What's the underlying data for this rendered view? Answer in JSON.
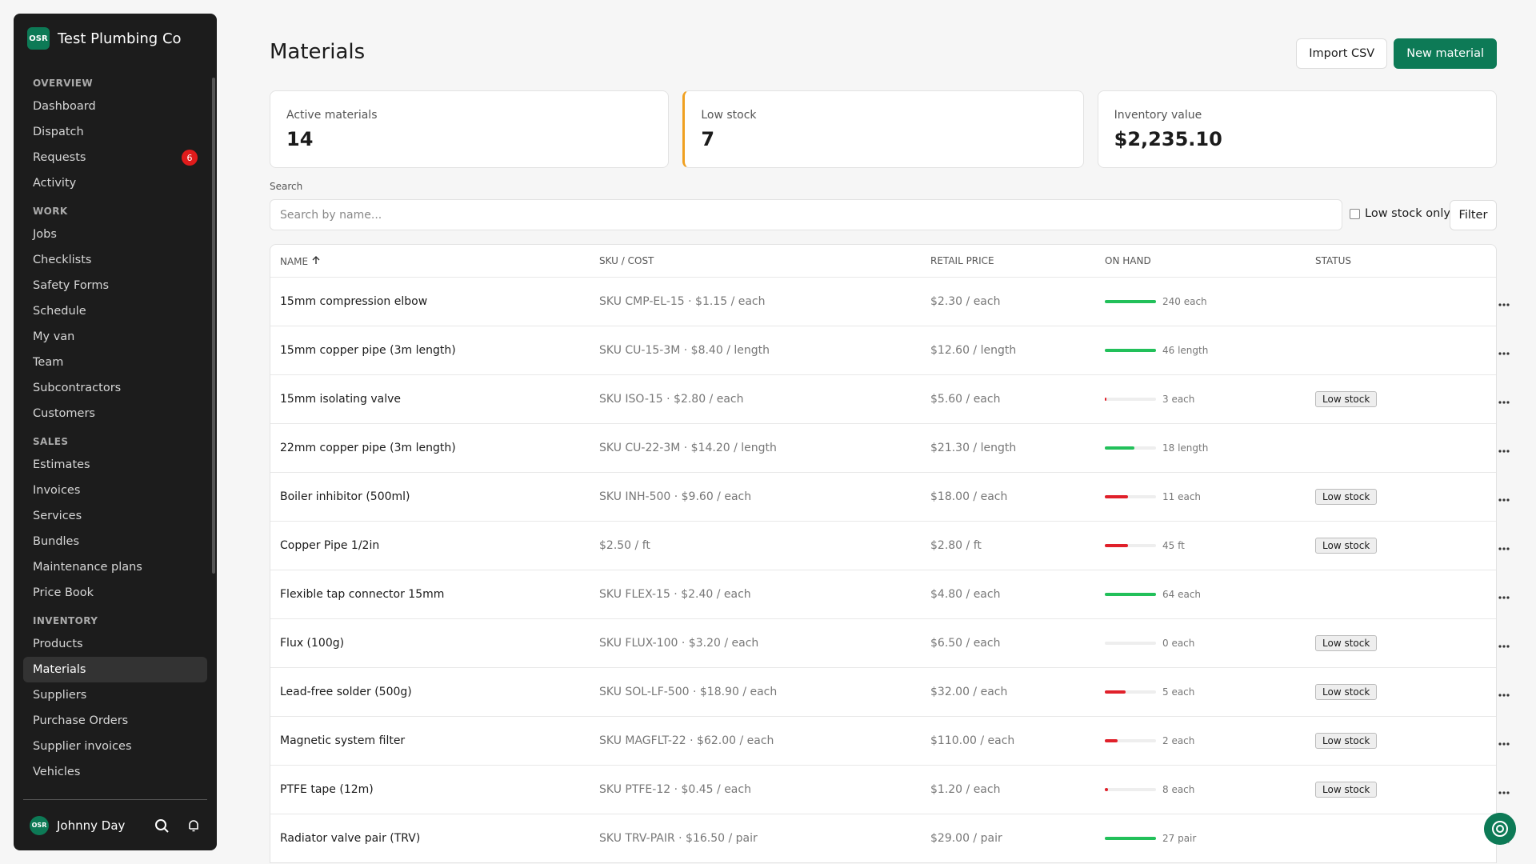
{
  "sidebar": {
    "brand_logo": "OSR",
    "brand": "Test Plumbing Co",
    "sections": [
      {
        "title": "OVERVIEW",
        "items": [
          {
            "label": "Dashboard"
          },
          {
            "label": "Dispatch"
          },
          {
            "label": "Requests",
            "badge": "6"
          },
          {
            "label": "Activity"
          }
        ]
      },
      {
        "title": "WORK",
        "items": [
          {
            "label": "Jobs"
          },
          {
            "label": "Checklists"
          },
          {
            "label": "Safety Forms"
          },
          {
            "label": "Schedule"
          },
          {
            "label": "My van"
          },
          {
            "label": "Team"
          },
          {
            "label": "Subcontractors"
          },
          {
            "label": "Customers"
          }
        ]
      },
      {
        "title": "SALES",
        "items": [
          {
            "label": "Estimates"
          },
          {
            "label": "Invoices"
          },
          {
            "label": "Services"
          },
          {
            "label": "Bundles"
          },
          {
            "label": "Maintenance plans"
          },
          {
            "label": "Price Book"
          }
        ]
      },
      {
        "title": "INVENTORY",
        "items": [
          {
            "label": "Products"
          },
          {
            "label": "Materials",
            "active": true
          },
          {
            "label": "Suppliers"
          },
          {
            "label": "Purchase Orders"
          },
          {
            "label": "Supplier invoices"
          },
          {
            "label": "Vehicles"
          }
        ]
      }
    ],
    "user": {
      "avatar": "OSR",
      "name": "Johnny Day"
    }
  },
  "header": {
    "title": "Materials",
    "buttons": [
      "Import CSV",
      "New material"
    ]
  },
  "stats": [
    {
      "label": "Active materials",
      "value": "14"
    },
    {
      "label": "Low stock",
      "value": "7",
      "accent": "#f0a020"
    },
    {
      "label": "Inventory value",
      "value": "$2,235.10"
    }
  ],
  "search": {
    "label": "Search",
    "placeholder": "Search by name...",
    "checkbox": "Low stock only",
    "filter": "Filter"
  },
  "table": {
    "columns": [
      "NAME",
      "SKU / COST",
      "RETAIL PRICE",
      "ON HAND",
      "STATUS"
    ],
    "rows": [
      {
        "name": "15mm compression elbow",
        "sku_cost": "SKU CMP-EL-15 · $1.15 / each",
        "retail": "$2.30 / each",
        "on_hand": "240 each",
        "level": 100
      },
      {
        "name": "15mm copper pipe (3m length)",
        "sku_cost": "SKU CU-15-3M · $8.40 / length",
        "retail": "$12.60 / length",
        "on_hand": "46 length",
        "level": 100
      },
      {
        "name": "15mm isolating valve",
        "sku_cost": "SKU ISO-15 · $2.80 / each",
        "retail": "$5.60 / each",
        "on_hand": "3 each",
        "level": 3,
        "status": "Low stock"
      },
      {
        "name": "22mm copper pipe (3m length)",
        "sku_cost": "SKU CU-22-3M · $14.20 / length",
        "retail": "$21.30 / length",
        "on_hand": "18 length",
        "level": 58
      },
      {
        "name": "Boiler inhibitor (500ml)",
        "sku_cost": "SKU INH-500 · $9.60 / each",
        "retail": "$18.00 / each",
        "on_hand": "11 each",
        "level": 45,
        "status": "Low stock"
      },
      {
        "name": "Copper Pipe 1/2in",
        "sku_cost": "$2.50 / ft",
        "retail": "$2.80 / ft",
        "on_hand": "45 ft",
        "level": 45,
        "status": "Low stock"
      },
      {
        "name": "Flexible tap connector 15mm",
        "sku_cost": "SKU FLEX-15 · $2.40 / each",
        "retail": "$4.80 / each",
        "on_hand": "64 each",
        "level": 100
      },
      {
        "name": "Flux (100g)",
        "sku_cost": "SKU FLUX-100 · $3.20 / each",
        "retail": "$6.50 / each",
        "on_hand": "0 each",
        "level": 0,
        "status": "Low stock"
      },
      {
        "name": "Lead-free solder (500g)",
        "sku_cost": "SKU SOL-LF-500 · $18.90 / each",
        "retail": "$32.00 / each",
        "on_hand": "5 each",
        "level": 40,
        "status": "Low stock"
      },
      {
        "name": "Magnetic system filter",
        "sku_cost": "SKU MAGFLT-22 · $62.00 / each",
        "retail": "$110.00 / each",
        "on_hand": "2 each",
        "level": 25,
        "status": "Low stock"
      },
      {
        "name": "PTFE tape (12m)",
        "sku_cost": "SKU PTFE-12 · $0.45 / each",
        "retail": "$1.20 / each",
        "on_hand": "8 each",
        "level": 6,
        "status": "Low stock"
      },
      {
        "name": "Radiator valve pair (TRV)",
        "sku_cost": "SKU TRV-PAIR · $16.50 / pair",
        "retail": "$29.00 / pair",
        "on_hand": "27 pair",
        "level": 100
      }
    ]
  }
}
